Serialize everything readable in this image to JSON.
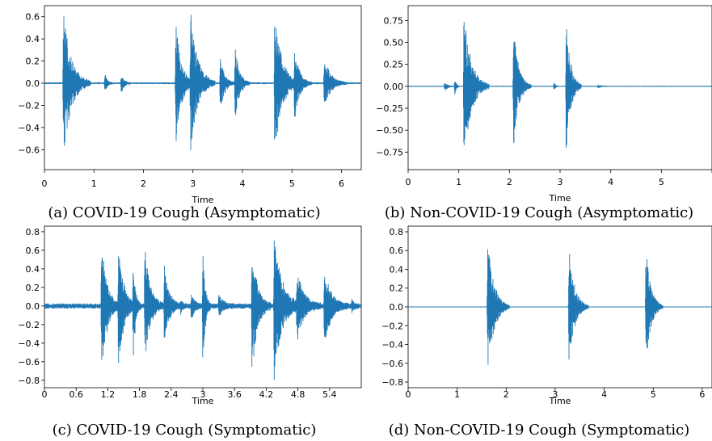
{
  "chart_data": [
    {
      "type": "line",
      "kind": "waveform",
      "caption": "(a) COVID-19 Cough (Asymptomatic)",
      "xlabel": "Time",
      "ylabel": "",
      "xlim": [
        0,
        6.4
      ],
      "ylim": [
        -0.78,
        0.7
      ],
      "xticks": [
        0,
        1,
        2,
        3,
        4,
        5,
        6
      ],
      "xtick_labels": [
        "0",
        "1",
        "2",
        "3",
        "4",
        "5",
        "6"
      ],
      "yticks": [
        -0.6,
        -0.4,
        -0.2,
        0.0,
        0.2,
        0.4,
        0.6
      ],
      "ytick_labels": [
        "−0.6",
        "−0.4",
        "−0.2",
        "0.0",
        "0.2",
        "0.4",
        "0.6"
      ],
      "noise": 0.006,
      "color": "#1f77b4",
      "bursts": [
        {
          "t": 0.38,
          "dur": 0.55,
          "pos": 0.67,
          "neg": -0.68
        },
        {
          "t": 1.22,
          "dur": 0.15,
          "pos": 0.1,
          "neg": -0.12
        },
        {
          "t": 1.55,
          "dur": 0.2,
          "pos": 0.08,
          "neg": -0.1
        },
        {
          "t": 2.65,
          "dur": 0.4,
          "pos": 0.58,
          "neg": -0.6
        },
        {
          "t": 2.95,
          "dur": 0.5,
          "pos": 0.67,
          "neg": -0.63
        },
        {
          "t": 3.55,
          "dur": 0.3,
          "pos": 0.25,
          "neg": -0.27
        },
        {
          "t": 3.85,
          "dur": 0.3,
          "pos": 0.35,
          "neg": -0.38
        },
        {
          "t": 4.65,
          "dur": 0.5,
          "pos": 0.69,
          "neg": -0.7
        },
        {
          "t": 5.05,
          "dur": 0.35,
          "pos": 0.33,
          "neg": -0.35
        },
        {
          "t": 5.65,
          "dur": 0.45,
          "pos": 0.25,
          "neg": -0.23
        }
      ]
    },
    {
      "type": "line",
      "kind": "waveform",
      "caption": "(b) Non-COVID-19 Cough (Asymptomatic)",
      "xlabel": "Time",
      "ylabel": "",
      "xlim": [
        0,
        6
      ],
      "ylim": [
        -0.95,
        0.92
      ],
      "xticks": [
        0,
        1,
        2,
        3,
        4,
        5,
        6
      ],
      "xtick_labels": [
        "0",
        "1",
        "2",
        "3",
        "4",
        "5",
        "6"
      ],
      "yticks": [
        -0.75,
        -0.5,
        -0.25,
        0.0,
        0.25,
        0.5,
        0.75
      ],
      "ytick_labels": [
        "−0.75",
        "−0.50",
        "−0.25",
        "0.00",
        "0.25",
        "0.50",
        "0.75"
      ],
      "noise": 0.004,
      "color": "#1f77b4",
      "bursts": [
        {
          "t": 0.72,
          "dur": 0.2,
          "pos": 0.05,
          "neg": -0.06
        },
        {
          "t": 0.92,
          "dur": 0.1,
          "pos": 0.1,
          "neg": -0.12
        },
        {
          "t": 1.1,
          "dur": 0.5,
          "pos": 0.87,
          "neg": -0.88
        },
        {
          "t": 2.08,
          "dur": 0.35,
          "pos": 0.73,
          "neg": -0.71
        },
        {
          "t": 2.88,
          "dur": 0.08,
          "pos": 0.06,
          "neg": -0.06
        },
        {
          "t": 3.12,
          "dur": 0.3,
          "pos": 0.83,
          "neg": -0.83
        },
        {
          "t": 3.75,
          "dur": 0.2,
          "pos": 0.02,
          "neg": -0.02
        }
      ]
    },
    {
      "type": "line",
      "kind": "waveform",
      "caption": "(c) COVID-19 Cough (Symptomatic)",
      "xlabel": "Time",
      "ylabel": "",
      "xlim": [
        0,
        6.0
      ],
      "ylim": [
        -0.88,
        0.86
      ],
      "xticks": [
        0,
        0.6,
        1.2,
        1.8,
        2.4,
        3,
        3.6,
        4.2,
        4.8,
        5.4
      ],
      "xtick_labels": [
        "0",
        "0.6",
        "1.2",
        "1.8",
        "2.4",
        "3",
        "3.6",
        "4.2",
        "4.8",
        "5.4"
      ],
      "yticks": [
        -0.8,
        -0.6,
        -0.4,
        -0.2,
        0.0,
        0.2,
        0.4,
        0.6,
        0.8
      ],
      "ytick_labels": [
        "−0.8",
        "−0.6",
        "−0.4",
        "−0.2",
        "0.0",
        "0.2",
        "0.4",
        "0.6",
        "0.8"
      ],
      "noise": 0.02,
      "color": "#1f77b4",
      "bursts": [
        {
          "t": 1.08,
          "dur": 0.35,
          "pos": 0.72,
          "neg": -0.75
        },
        {
          "t": 1.4,
          "dur": 0.35,
          "pos": 0.7,
          "neg": -0.7
        },
        {
          "t": 1.68,
          "dur": 0.15,
          "pos": 0.45,
          "neg": -0.65
        },
        {
          "t": 1.9,
          "dur": 0.35,
          "pos": 0.65,
          "neg": -0.6
        },
        {
          "t": 2.27,
          "dur": 0.3,
          "pos": 0.45,
          "neg": -0.45
        },
        {
          "t": 2.58,
          "dur": 0.12,
          "pos": 0.08,
          "neg": -0.08
        },
        {
          "t": 2.78,
          "dur": 0.25,
          "pos": 0.12,
          "neg": -0.14
        },
        {
          "t": 3.0,
          "dur": 0.15,
          "pos": 0.67,
          "neg": -0.72
        },
        {
          "t": 3.3,
          "dur": 0.3,
          "pos": 0.12,
          "neg": -0.1
        },
        {
          "t": 3.93,
          "dur": 0.35,
          "pos": 0.67,
          "neg": -0.75
        },
        {
          "t": 4.35,
          "dur": 0.5,
          "pos": 0.8,
          "neg": -0.78
        },
        {
          "t": 4.78,
          "dur": 0.45,
          "pos": 0.4,
          "neg": -0.4
        },
        {
          "t": 5.3,
          "dur": 0.45,
          "pos": 0.4,
          "neg": -0.42
        },
        {
          "t": 5.82,
          "dur": 0.15,
          "pos": 0.06,
          "neg": -0.06
        }
      ]
    },
    {
      "type": "line",
      "kind": "waveform",
      "caption": "(d) Non-COVID-19 Cough (Symptomatic)",
      "xlabel": "Time",
      "ylabel": "",
      "xlim": [
        0,
        6.2
      ],
      "ylim": [
        -0.86,
        0.86
      ],
      "xticks": [
        0,
        1,
        2,
        3,
        4,
        5,
        6
      ],
      "xtick_labels": [
        "0",
        "1",
        "2",
        "3",
        "4",
        "5",
        "6"
      ],
      "yticks": [
        -0.8,
        -0.6,
        -0.4,
        -0.2,
        0.0,
        0.2,
        0.4,
        0.6,
        0.8
      ],
      "ytick_labels": [
        "−0.8",
        "−0.6",
        "−0.4",
        "−0.2",
        "0.0",
        "0.2",
        "0.4",
        "0.6",
        "0.8"
      ],
      "noise": 0.002,
      "color": "#1f77b4",
      "bursts": [
        {
          "t": 1.62,
          "dur": 0.45,
          "pos": 0.78,
          "neg": -0.77
        },
        {
          "t": 3.28,
          "dur": 0.4,
          "pos": 0.67,
          "neg": -0.66
        },
        {
          "t": 4.85,
          "dur": 0.35,
          "pos": 0.69,
          "neg": -0.67
        }
      ]
    }
  ]
}
